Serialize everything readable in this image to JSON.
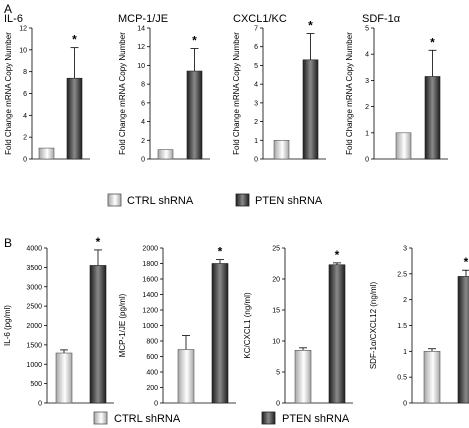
{
  "panels": [
    {
      "letter": "A"
    },
    {
      "letter": "B"
    }
  ],
  "legend": {
    "ctrl_label": "CTRL shRNA",
    "pten_label": "PTEN shRNA"
  },
  "colors": {
    "ctrl_light": "#ffffff",
    "ctrl_dark": "#a6a6a6",
    "pten_light": "#8a8a8a",
    "pten_dark": "#1e1e1e",
    "axis": "#000000"
  },
  "chart_data": [
    {
      "type": "bar",
      "panel": "A",
      "title": "IL-6",
      "ylabel": "Fold Change mRNA Copy Number",
      "categories": [
        "CTRL shRNA",
        "PTEN shRNA"
      ],
      "values": [
        1,
        7.4
      ],
      "errors": [
        0,
        2.8
      ],
      "ylim": [
        0,
        12
      ],
      "yticks": [
        0,
        2,
        4,
        6,
        8,
        10,
        12
      ],
      "annotation": "*"
    },
    {
      "type": "bar",
      "panel": "A",
      "title": "MCP-1/JE",
      "ylabel": "Fold Change mRNA Copy Number",
      "categories": [
        "CTRL shRNA",
        "PTEN shRNA"
      ],
      "values": [
        1,
        9.4
      ],
      "errors": [
        0,
        2.4
      ],
      "ylim": [
        0,
        14
      ],
      "yticks": [
        0,
        2,
        4,
        6,
        8,
        10,
        12,
        14
      ],
      "annotation": "*"
    },
    {
      "type": "bar",
      "panel": "A",
      "title": "CXCL1/KC",
      "ylabel": "Fold Change mRNA Copy Number",
      "categories": [
        "CTRL shRNA",
        "PTEN shRNA"
      ],
      "values": [
        1,
        5.3
      ],
      "errors": [
        0,
        1.4
      ],
      "ylim": [
        0,
        7
      ],
      "yticks": [
        0,
        1,
        2,
        3,
        4,
        5,
        6,
        7
      ],
      "annotation": "*"
    },
    {
      "type": "bar",
      "panel": "A",
      "title": "SDF-1α",
      "ylabel": "Fold Change mRNA Copy Number",
      "categories": [
        "CTRL shRNA",
        "PTEN shRNA"
      ],
      "values": [
        1,
        3.15
      ],
      "errors": [
        0,
        1.0
      ],
      "ylim": [
        0,
        5
      ],
      "yticks": [
        0,
        1,
        2,
        3,
        4,
        5
      ],
      "annotation": "*"
    },
    {
      "type": "bar",
      "panel": "B",
      "title": "",
      "ylabel": "IL-6 (pg/ml)",
      "categories": [
        "CTRL shRNA",
        "PTEN shRNA"
      ],
      "values": [
        1290,
        3550
      ],
      "errors": [
        80,
        400
      ],
      "ylim": [
        0,
        4000
      ],
      "yticks": [
        0,
        500,
        1000,
        1500,
        2000,
        2500,
        3000,
        3500,
        4000
      ],
      "annotation": "*"
    },
    {
      "type": "bar",
      "panel": "B",
      "title": "",
      "ylabel": "MCP-1/JE (pg/ml)",
      "categories": [
        "CTRL shRNA",
        "PTEN shRNA"
      ],
      "values": [
        690,
        1800
      ],
      "errors": [
        180,
        50
      ],
      "ylim": [
        0,
        2000
      ],
      "yticks": [
        0,
        200,
        400,
        600,
        800,
        1000,
        1200,
        1400,
        1600,
        1800,
        2000
      ],
      "annotation": "*"
    },
    {
      "type": "bar",
      "panel": "B",
      "title": "",
      "ylabel": "KC/CXCL1 (ng/ml)",
      "categories": [
        "CTRL shRNA",
        "PTEN shRNA"
      ],
      "values": [
        8.5,
        22.3
      ],
      "errors": [
        0.4,
        0.3
      ],
      "ylim": [
        0,
        25
      ],
      "yticks": [
        0,
        5,
        10,
        15,
        20,
        25
      ],
      "annotation": "*"
    },
    {
      "type": "bar",
      "panel": "B",
      "title": "",
      "ylabel": "SDF-1α/CXCL12 (ng/ml)",
      "categories": [
        "CTRL shRNA",
        "PTEN shRNA"
      ],
      "values": [
        1.0,
        2.45
      ],
      "errors": [
        0.05,
        0.12
      ],
      "ylim": [
        0,
        3
      ],
      "yticks": [
        0,
        0.5,
        1,
        1.5,
        2,
        2.5,
        3
      ],
      "annotation": "*"
    }
  ]
}
